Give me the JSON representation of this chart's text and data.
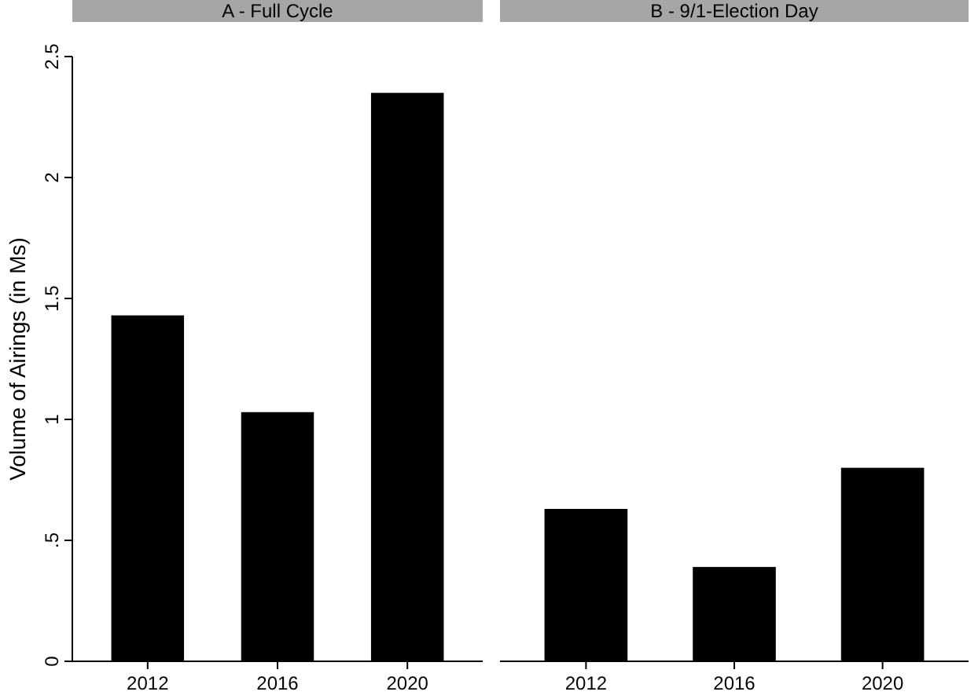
{
  "chart_data": [
    {
      "type": "bar",
      "title": "A - Full Cycle",
      "ylabel": "Volume of Airings (in Ms)",
      "categories": [
        "2012",
        "2016",
        "2020"
      ],
      "values": [
        1.43,
        1.03,
        2.35
      ],
      "color": "#000000",
      "ylim": [
        0,
        2.5
      ],
      "yticks": [
        0,
        {
          "value": 0.5,
          "label": ".5"
        },
        1,
        1.5,
        2,
        2.5
      ]
    },
    {
      "type": "bar",
      "title": "B - 9/1-Election Day",
      "categories": [
        "2012",
        "2016",
        "2020"
      ],
      "values": [
        0.63,
        0.39,
        0.8
      ],
      "color": "#000000",
      "ylim": [
        0,
        2.5
      ],
      "tick_labels": "x"
    }
  ]
}
